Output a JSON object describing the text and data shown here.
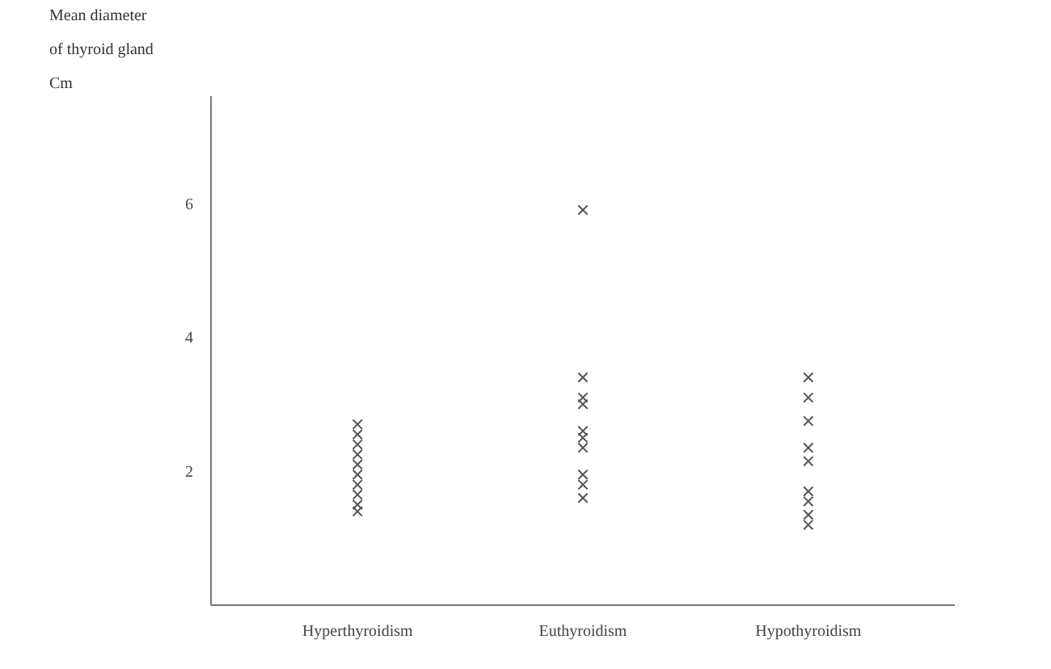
{
  "chart_data": {
    "type": "scatter",
    "ylabel": "Mean diameter\nof thyroid gland\nCm",
    "categories": [
      "Hyperthyroidism",
      "Euthyroidism",
      "Hypothyroidism"
    ],
    "series": [
      {
        "color": "#555555",
        "x": [
          "Hyperthyroidism",
          "Hyperthyroidism",
          "Hyperthyroidism",
          "Hyperthyroidism",
          "Hyperthyroidism",
          "Hyperthyroidism",
          "Hyperthyroidism",
          "Hyperthyroidism",
          "Hyperthyroidism",
          "Hyperthyroidism",
          "Euthyroidism",
          "Euthyroidism",
          "Euthyroidism",
          "Euthyroidism",
          "Euthyroidism",
          "Euthyroidism",
          "Euthyroidism",
          "Euthyroidism",
          "Euthyroidism",
          "Euthyroidism",
          "Hypothyroidism",
          "Hypothyroidism",
          "Hypothyroidism",
          "Hypothyroidism",
          "Hypothyroidism",
          "Hypothyroidism",
          "Hypothyroidism",
          "Hypothyroidism",
          "Hypothyroidism"
        ],
        "values": [
          2.7,
          2.55,
          2.4,
          2.25,
          2.1,
          1.95,
          1.8,
          1.65,
          1.5,
          1.4,
          5.9,
          3.4,
          3.1,
          3.0,
          2.6,
          2.5,
          2.35,
          1.95,
          1.8,
          1.6,
          3.4,
          3.1,
          2.75,
          2.35,
          2.15,
          1.7,
          1.55,
          1.35,
          1.2
        ]
      }
    ],
    "ylim": [
      0,
      7.6
    ],
    "yticks": [
      2,
      4,
      6
    ],
    "grid": false,
    "marker": "cross"
  }
}
